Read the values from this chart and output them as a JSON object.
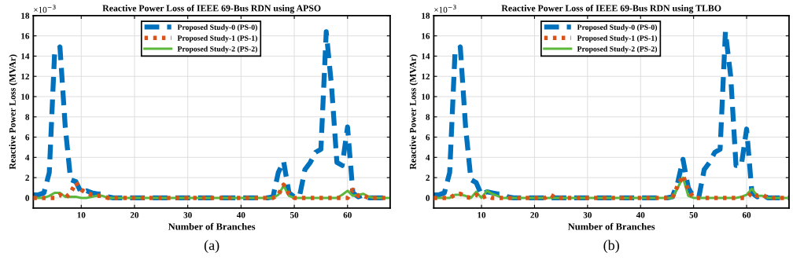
{
  "chart_data": [
    {
      "type": "line",
      "title": "Reactive Power Loss of IEEE 69-Bus RDN using APSO",
      "xlabel": "Number of Branches",
      "ylabel": "Reactive Power Loss (MVAr)",
      "annotations": [
        "×10$^{−3}$",
        "(a)"
      ],
      "x": [
        1,
        2,
        3,
        4,
        5,
        6,
        7,
        8,
        9,
        10,
        11,
        12,
        13,
        14,
        15,
        16,
        17,
        18,
        19,
        20,
        21,
        22,
        23,
        24,
        25,
        26,
        27,
        28,
        29,
        30,
        31,
        32,
        33,
        34,
        35,
        36,
        37,
        38,
        39,
        40,
        41,
        42,
        43,
        44,
        45,
        46,
        47,
        48,
        49,
        50,
        51,
        52,
        53,
        54,
        55,
        56,
        57,
        58,
        59,
        60,
        61,
        62,
        63,
        64,
        65,
        66,
        67,
        68
      ],
      "xlim": [
        1,
        68
      ],
      "xticks": [
        10,
        20,
        30,
        40,
        50,
        60
      ],
      "ylim": [
        -1,
        18
      ],
      "yticks": [
        0,
        2,
        4,
        6,
        8,
        10,
        12,
        14,
        16,
        18
      ],
      "grid": true,
      "legend": "top",
      "series": [
        {
          "name": "Proposed Study-0 (PS-0)",
          "color": "#0072bd",
          "line_style": "dashed",
          "values": [
            0.3,
            0.3,
            0.5,
            2.5,
            14.3,
            14.9,
            7,
            1.8,
            1.6,
            0.5,
            0.7,
            0.5,
            0.4,
            0.4,
            0.1,
            0,
            0,
            0,
            0,
            0,
            0,
            0,
            0,
            0,
            0,
            0,
            0,
            0,
            0,
            0,
            0,
            0,
            0,
            0,
            0,
            0,
            0,
            0,
            0,
            0,
            0,
            0,
            0,
            0,
            0,
            0.1,
            2.5,
            3.6,
            0.5,
            0.1,
            0.2,
            2.8,
            3.5,
            4.5,
            4.8,
            16.4,
            11,
            3.5,
            3.2,
            7,
            0.5,
            0.1,
            0.3,
            0,
            0,
            0,
            0,
            0
          ]
        },
        {
          "name": "Proposed Study-1 (PS-1)",
          "color": "#d95319",
          "line_style": "dotted",
          "values": [
            0,
            0,
            0,
            0,
            0,
            0.3,
            0,
            0.5,
            1.5,
            0.8,
            0.5,
            0.3,
            0.2,
            0.2,
            0,
            0,
            0,
            0,
            0,
            0,
            0,
            0,
            0,
            0,
            0,
            0,
            0,
            0,
            0,
            0,
            0,
            0,
            0,
            0,
            0,
            0,
            0,
            0,
            0,
            0,
            0,
            0,
            0,
            0,
            0,
            0,
            0.3,
            1.3,
            0.4,
            0,
            0,
            0,
            0,
            0,
            0,
            0,
            0,
            0,
            0,
            0,
            0.8,
            0.2,
            0.2,
            0,
            0,
            0,
            0,
            0
          ]
        },
        {
          "name": "Proposed Study-2 (PS-2)",
          "color": "#5cb83c",
          "line_style": "solid",
          "values": [
            0,
            0,
            0,
            0.2,
            0.5,
            0.5,
            0.1,
            0.1,
            0.1,
            0,
            0,
            0.1,
            0.2,
            0.2,
            0,
            0,
            0,
            0,
            0,
            0,
            0,
            0,
            0,
            0,
            0,
            0,
            0,
            0,
            0,
            0,
            0,
            0,
            0,
            0,
            0,
            0,
            0,
            0,
            0,
            0,
            0,
            0,
            0,
            0,
            0,
            0,
            0.3,
            1.2,
            0.2,
            0,
            0,
            0,
            0,
            0,
            0,
            0,
            0,
            0,
            0.3,
            0.7,
            0.2,
            0.3,
            0.4,
            0.1,
            0,
            0,
            0,
            0
          ]
        }
      ]
    },
    {
      "type": "line",
      "title": "Reactive Power Loss of IEEE 69-Bus RDN using TLBO",
      "xlabel": "Number of Branches",
      "ylabel": "Reactive Power Loss (MVAr)",
      "annotations": [
        "×10$^{−3}$",
        "(b)"
      ],
      "x": [
        1,
        2,
        3,
        4,
        5,
        6,
        7,
        8,
        9,
        10,
        11,
        12,
        13,
        14,
        15,
        16,
        17,
        18,
        19,
        20,
        21,
        22,
        23,
        24,
        25,
        26,
        27,
        28,
        29,
        30,
        31,
        32,
        33,
        34,
        35,
        36,
        37,
        38,
        39,
        40,
        41,
        42,
        43,
        44,
        45,
        46,
        47,
        48,
        49,
        50,
        51,
        52,
        53,
        54,
        55,
        56,
        57,
        58,
        59,
        60,
        61,
        62,
        63,
        64,
        65,
        66,
        67,
        68
      ],
      "xlim": [
        1,
        68
      ],
      "xticks": [
        10,
        20,
        30,
        40,
        50,
        60
      ],
      "ylim": [
        -1,
        18
      ],
      "yticks": [
        0,
        2,
        4,
        6,
        8,
        10,
        12,
        14,
        16,
        18
      ],
      "grid": true,
      "legend": "top",
      "series": [
        {
          "name": "Proposed Study-0 (PS-0)",
          "color": "#0072bd",
          "line_style": "dashed",
          "values": [
            0.3,
            0.3,
            0.5,
            2.5,
            14.3,
            14.9,
            7,
            1.8,
            1.5,
            0.3,
            0.6,
            0.5,
            0.4,
            0.4,
            0.1,
            0,
            0,
            0,
            0,
            0,
            0,
            0,
            0,
            0,
            0,
            0,
            0,
            0,
            0,
            0,
            0,
            0,
            0,
            0,
            0,
            0,
            0,
            0,
            0,
            0,
            0,
            0,
            0,
            0,
            0,
            0.1,
            1.5,
            3.8,
            1.0,
            0.1,
            0.1,
            2.8,
            3.5,
            4.5,
            4.8,
            16.4,
            12,
            3.2,
            3.2,
            6.8,
            0.5,
            0.1,
            0.3,
            0,
            0,
            0,
            0,
            0
          ]
        },
        {
          "name": "Proposed Study-1 (PS-1)",
          "color": "#d95319",
          "line_style": "dotted",
          "values": [
            0,
            0,
            0,
            0,
            0.3,
            0.4,
            0.1,
            0,
            0.3,
            0,
            0.2,
            0,
            0,
            0,
            0,
            0,
            0,
            0,
            0,
            0,
            0,
            0,
            0.3,
            0,
            0,
            0,
            0,
            0,
            0,
            0,
            0,
            0,
            0,
            0,
            0,
            0,
            0,
            0,
            0,
            0,
            0,
            0,
            0,
            0,
            0,
            0,
            1.2,
            2.2,
            0.8,
            0,
            0,
            0,
            0,
            0,
            0,
            0,
            0,
            0,
            0,
            0,
            0.5,
            0.2,
            0.3,
            0,
            0,
            0,
            0,
            0
          ]
        },
        {
          "name": "Proposed Study-2 (PS-2)",
          "color": "#5cb83c",
          "line_style": "solid",
          "values": [
            0,
            0,
            0,
            0,
            0.3,
            0.3,
            0.2,
            0,
            0.6,
            0,
            0.7,
            0.4,
            0.2,
            0,
            0,
            0,
            0,
            0,
            0,
            0,
            0,
            0,
            0,
            0,
            0,
            0,
            0,
            0,
            0,
            0,
            0,
            0,
            0,
            0,
            0,
            0,
            0,
            0,
            0,
            0,
            0,
            0,
            0,
            0,
            0,
            0,
            1.0,
            2.0,
            0.2,
            0,
            0,
            0,
            0,
            0,
            0,
            0,
            0,
            0,
            0.1,
            0.3,
            0.9,
            0.2,
            0.2,
            0,
            0,
            0,
            0,
            0
          ]
        }
      ]
    }
  ]
}
